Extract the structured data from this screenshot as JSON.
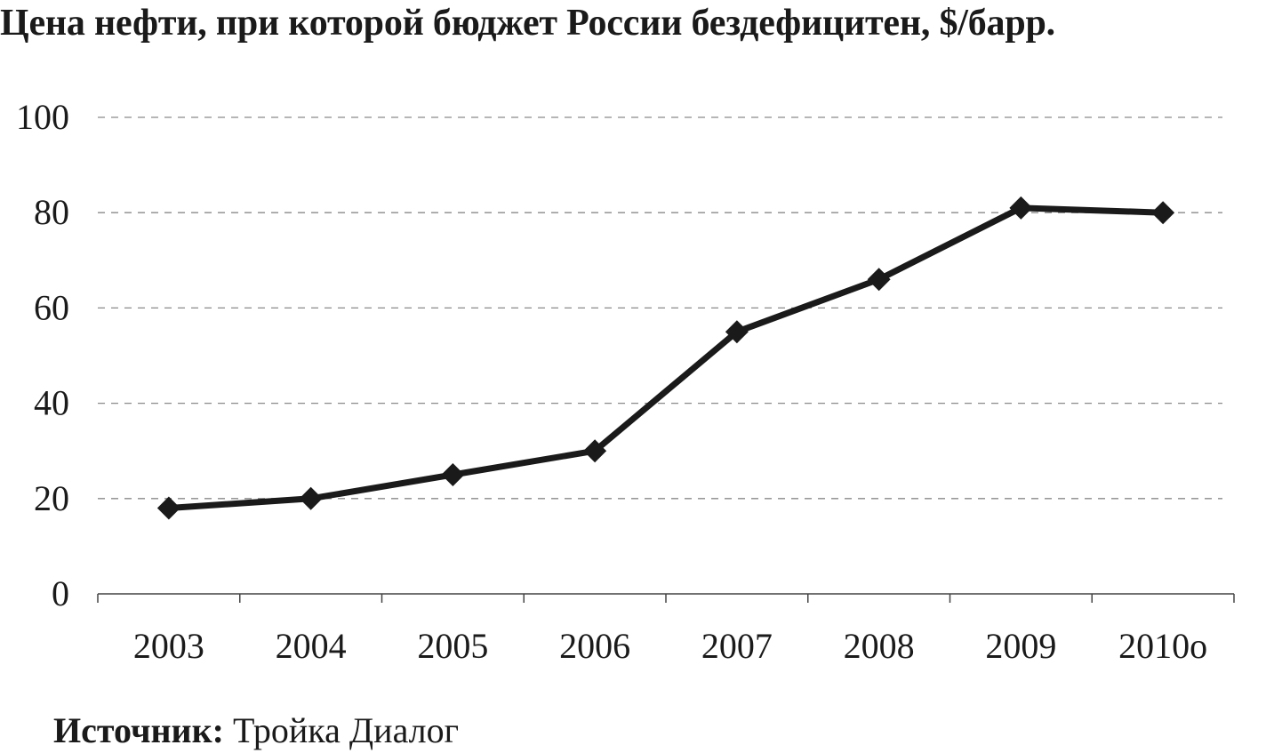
{
  "chart_data": {
    "type": "line",
    "title": "Цена нефти, при которой бюджет России бездефицитен, $/барр.",
    "categories": [
      "2003",
      "2004",
      "2005",
      "2006",
      "2007",
      "2008",
      "2009",
      "2010о"
    ],
    "series": [
      {
        "values": [
          18,
          20,
          25,
          30,
          55,
          66,
          81,
          80
        ]
      }
    ],
    "ylim": [
      0,
      100
    ],
    "yticks": [
      "0",
      "20",
      "40",
      "60",
      "80",
      "100"
    ],
    "grid": true,
    "marker": "diamond",
    "line_color": "#1a1a1a",
    "grid_color": "#8a8a8a"
  },
  "source": {
    "label": "Источник:",
    "text": "Тройка Диалог"
  }
}
